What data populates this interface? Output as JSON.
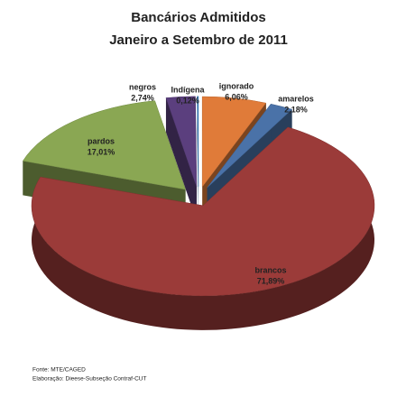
{
  "chart_data": {
    "type": "pie",
    "title": "Bancários Admitidos",
    "subtitle": "Janeiro a Setembro de 2011",
    "categories": [
      "ignorado",
      "amarelos",
      "brancos",
      "pardos",
      "negros",
      "Indígena"
    ],
    "values": [
      6.06,
      2.18,
      71.89,
      17.01,
      2.74,
      0.12
    ],
    "value_labels": [
      "6,06%",
      "2,18%",
      "71,89%",
      "17,01%",
      "2,74%",
      "0,12%"
    ],
    "colors": [
      "#e07b39",
      "#4a72a8",
      "#9b3b39",
      "#8aa753",
      "#5b3f7e",
      "#3a7fc0"
    ],
    "source": "Fonte: MTE/CAGED",
    "credit": "Elaboração: Dieese-Subseção Contraf-CUT"
  }
}
